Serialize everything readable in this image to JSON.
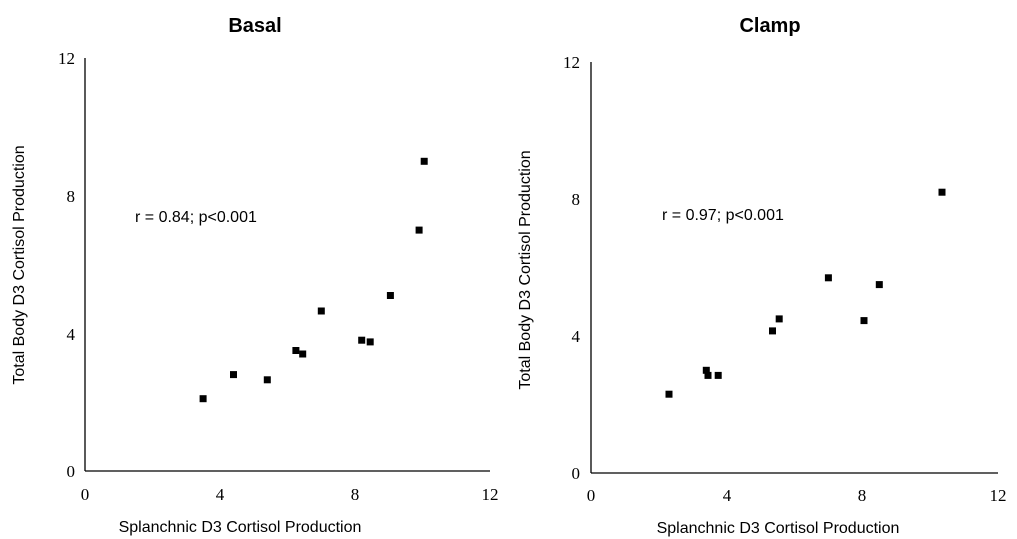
{
  "chart_data": [
    {
      "type": "scatter",
      "title": "Basal",
      "xlabel": "Splanchnic D3 Cortisol Production",
      "ylabel": "Total Body D3 Cortisol Production",
      "xlim": [
        0,
        12
      ],
      "ylim": [
        0,
        12
      ],
      "xticks": [
        "0",
        "4",
        "8",
        "12"
      ],
      "yticks": [
        "0",
        "4",
        "8",
        "12"
      ],
      "annotation": "r = 0.84; p<0.001",
      "grid": false,
      "points": [
        {
          "x": 3.5,
          "y": 2.1
        },
        {
          "x": 4.4,
          "y": 2.8
        },
        {
          "x": 5.4,
          "y": 2.65
        },
        {
          "x": 6.25,
          "y": 3.5
        },
        {
          "x": 6.45,
          "y": 3.4
        },
        {
          "x": 7.0,
          "y": 4.65
        },
        {
          "x": 8.2,
          "y": 3.8
        },
        {
          "x": 8.45,
          "y": 3.75
        },
        {
          "x": 9.05,
          "y": 5.1
        },
        {
          "x": 9.9,
          "y": 7.0
        },
        {
          "x": 10.05,
          "y": 9.0
        }
      ]
    },
    {
      "type": "scatter",
      "title": "Clamp",
      "xlabel": "Splanchnic D3 Cortisol Production",
      "ylabel": "Total Body D3 Cortisol Production",
      "xlim": [
        0,
        12
      ],
      "ylim": [
        0,
        12
      ],
      "xticks": [
        "0",
        "4",
        "8",
        "12"
      ],
      "yticks": [
        "0",
        "4",
        "8",
        "12"
      ],
      "annotation": "r = 0.97; p<0.001",
      "grid": false,
      "points": [
        {
          "x": 2.3,
          "y": 2.3
        },
        {
          "x": 3.4,
          "y": 3.0
        },
        {
          "x": 3.45,
          "y": 2.85
        },
        {
          "x": 3.75,
          "y": 2.85
        },
        {
          "x": 5.35,
          "y": 4.15
        },
        {
          "x": 5.55,
          "y": 4.5
        },
        {
          "x": 7.0,
          "y": 5.7
        },
        {
          "x": 8.05,
          "y": 4.45
        },
        {
          "x": 8.5,
          "y": 5.5
        },
        {
          "x": 10.35,
          "y": 8.2
        }
      ]
    }
  ]
}
